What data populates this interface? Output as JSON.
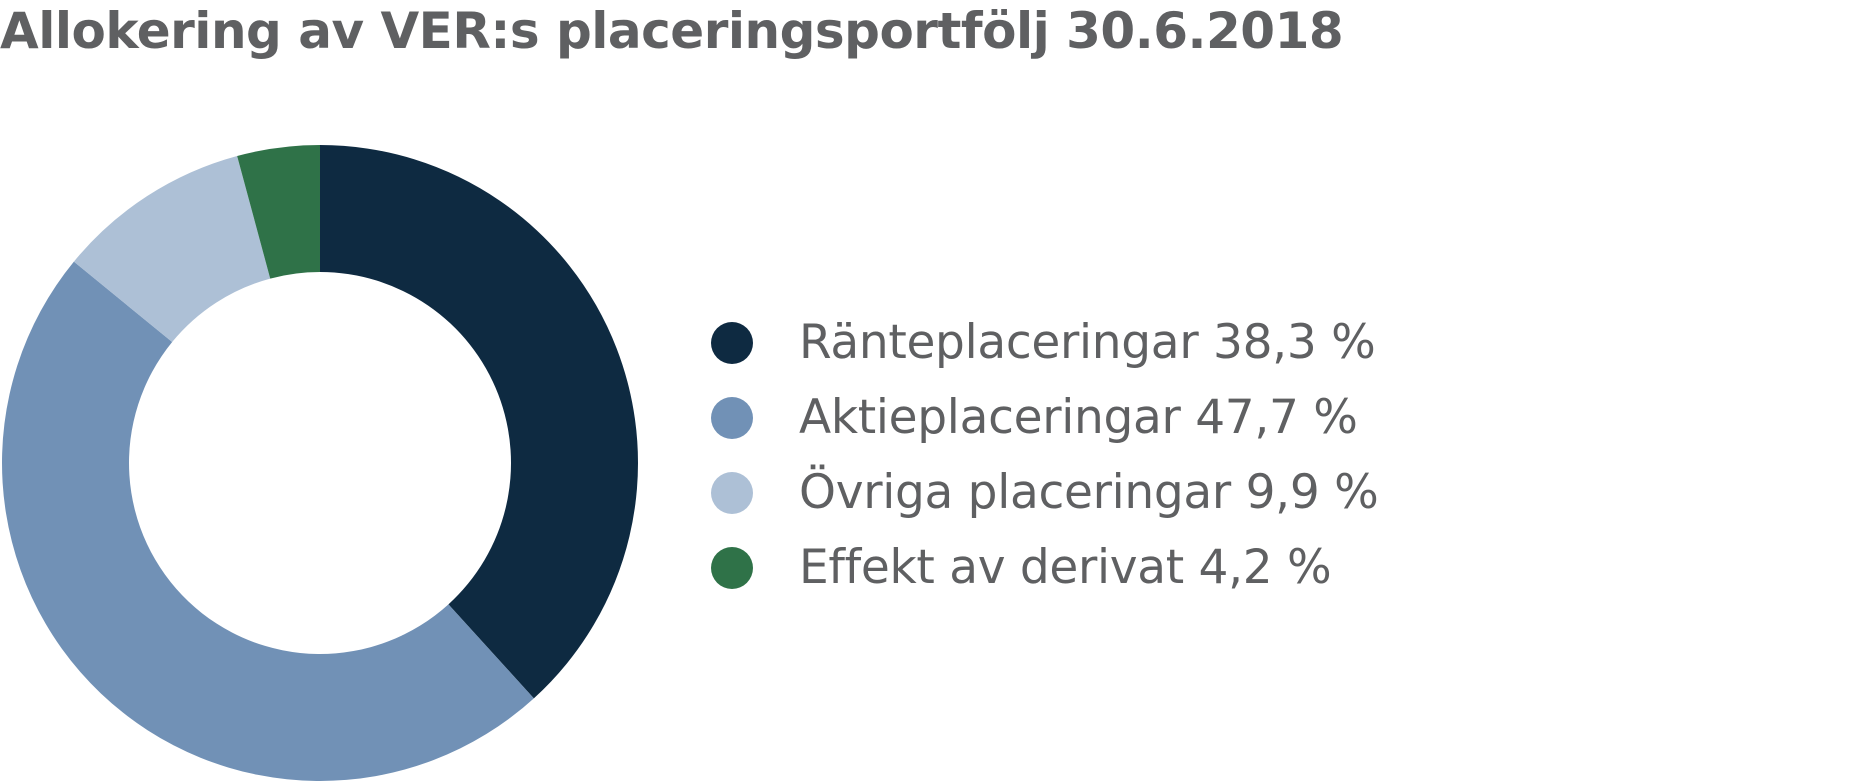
{
  "title": "Allokering av VER:s placeringsportfölj 30.6.2018",
  "chart_data": {
    "type": "pie",
    "title": "Allokering av VER:s placeringsportfölj 30.6.2018",
    "series": [
      {
        "label": "Ränteplaceringar",
        "value": 38.3,
        "value_text": "38,3 %",
        "color": "#0e2a41"
      },
      {
        "label": "Aktieplaceringar",
        "value": 47.7,
        "value_text": "47,7 %",
        "color": "#7191b6"
      },
      {
        "label": "Övriga placeringar",
        "value": 9.9,
        "value_text": "9,9 %",
        "color": "#adc0d6"
      },
      {
        "label": "Effekt av derivat",
        "value": 4.2,
        "value_text": "4,2 %",
        "color": "#2f7248"
      }
    ],
    "legend_placement": "right",
    "donut": true,
    "start_angle": "12 o'clock",
    "direction": "clockwise"
  }
}
